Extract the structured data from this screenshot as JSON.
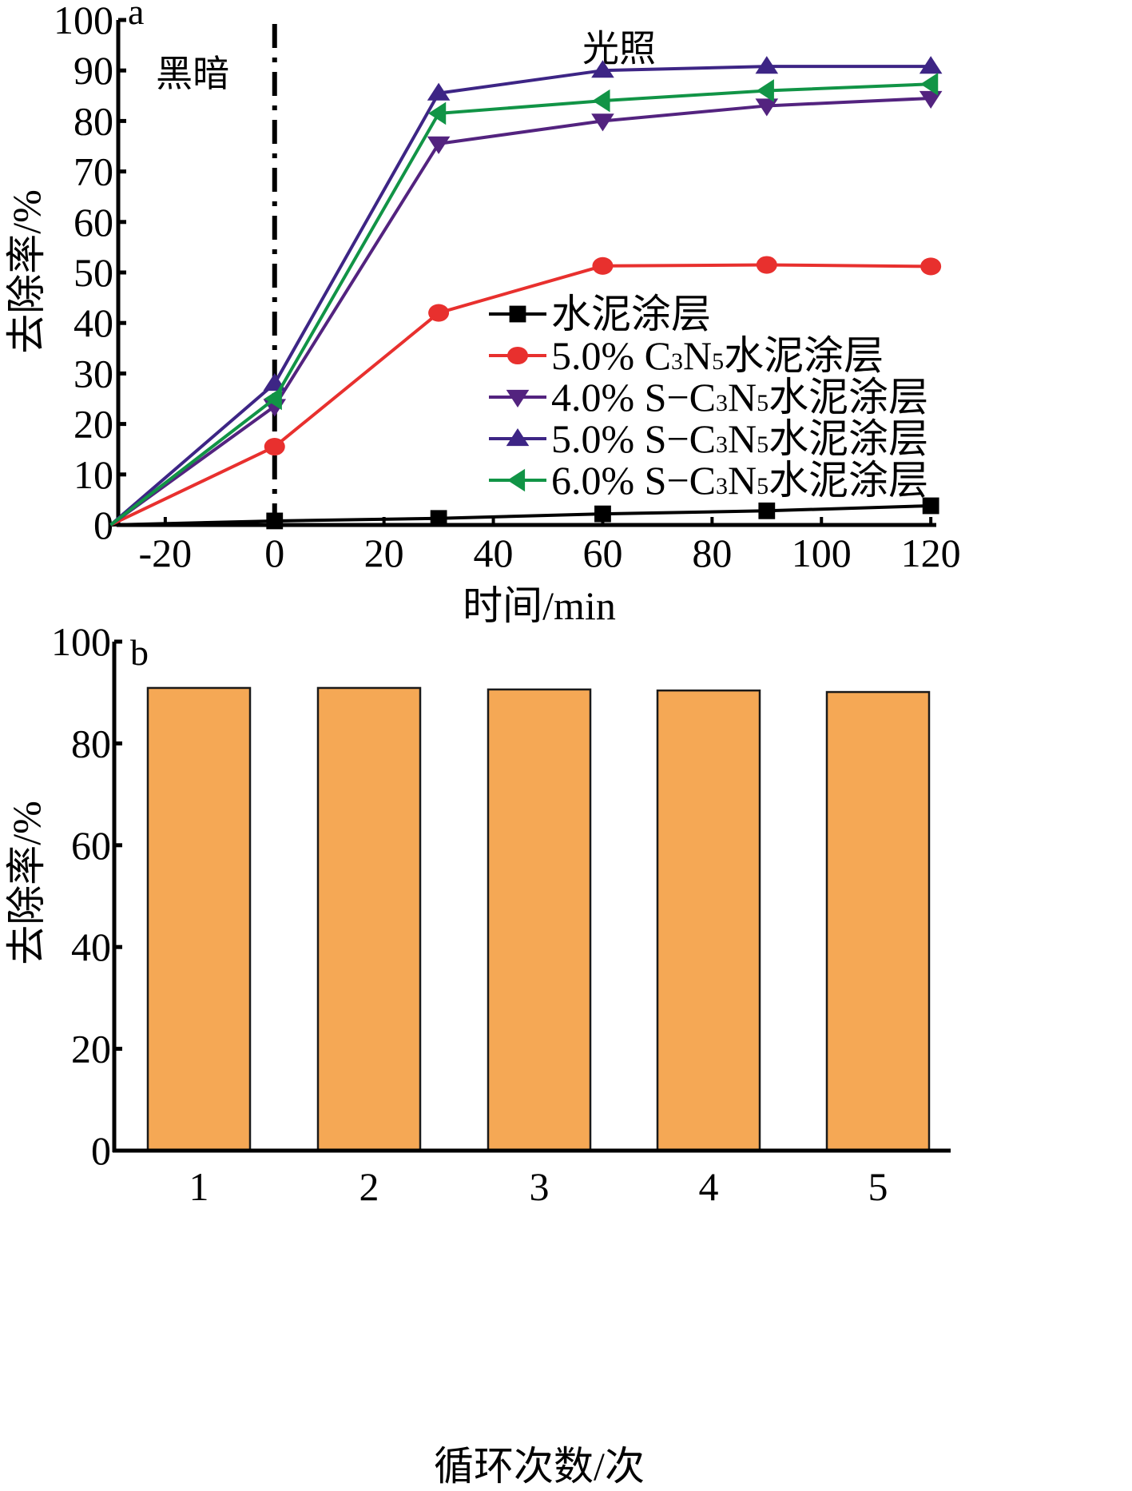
{
  "chart_data": [
    {
      "panel": "a",
      "type": "line",
      "title": "",
      "xlabel": "时间/min",
      "ylabel": "去除率/%",
      "xlim": [
        -28.6,
        121
      ],
      "ylim": [
        0,
        100
      ],
      "xticks": [
        -20,
        0,
        20,
        40,
        60,
        80,
        100,
        120
      ],
      "yticks": [
        0,
        10,
        20,
        30,
        40,
        50,
        60,
        70,
        80,
        90,
        100
      ],
      "x": [
        -30,
        0,
        30,
        60,
        90,
        120
      ],
      "grid": false,
      "legend_position": "center-right",
      "annotations": [
        {
          "text": "黑暗",
          "x": -15,
          "y": 90
        },
        {
          "text": "光照",
          "x": 63,
          "y": 95
        },
        {
          "type": "vline",
          "x": 0,
          "style": "dash-dot"
        }
      ],
      "series": [
        {
          "name": "水泥涂层",
          "color": "#000000",
          "marker": "square",
          "values": [
            0,
            0.8,
            1.3,
            2.2,
            2.8,
            3.8
          ]
        },
        {
          "name": "5.0% C3N5水泥涂层",
          "color": "#e8302e",
          "marker": "circle",
          "values": [
            0,
            15.5,
            42.0,
            51.3,
            51.5,
            51.2
          ]
        },
        {
          "name": "4.0% S-C3N5水泥涂层",
          "color": "#53237f",
          "marker": "triangle-down",
          "values": [
            0,
            23.5,
            75.5,
            80.0,
            83.0,
            84.5
          ]
        },
        {
          "name": "5.0% S-C3N5水泥涂层",
          "color": "#3d2585",
          "marker": "triangle-up",
          "values": [
            0,
            28.0,
            85.5,
            90.0,
            90.8,
            90.8
          ]
        },
        {
          "name": "6.0% S-C3N5水泥涂层",
          "color": "#119446",
          "marker": "triangle-left",
          "values": [
            0,
            25.0,
            81.5,
            84.0,
            86.0,
            87.3
          ]
        }
      ],
      "legend": [
        {
          "prefix": "",
          "formula": "",
          "suffix": "水泥涂层"
        },
        {
          "prefix": "5.0% ",
          "formula": "C3N5",
          "suffix": "水泥涂层"
        },
        {
          "prefix": "4.0% S−",
          "formula": "C3N5",
          "suffix": "水泥涂层"
        },
        {
          "prefix": "5.0% S−",
          "formula": "C3N5",
          "suffix": "水泥涂层"
        },
        {
          "prefix": "6.0% S−",
          "formula": "C3N5",
          "suffix": "水泥涂层"
        }
      ]
    },
    {
      "panel": "b",
      "type": "bar",
      "title": "",
      "xlabel": "循环次数/次",
      "ylabel": "去除率/%",
      "ylim": [
        0,
        100
      ],
      "yticks": [
        0,
        20,
        40,
        60,
        80,
        100
      ],
      "categories": [
        "1",
        "2",
        "3",
        "4",
        "5"
      ],
      "values": [
        90.9,
        90.9,
        90.6,
        90.4,
        90.1
      ],
      "bar_color": "#f5a855",
      "grid": false
    }
  ]
}
